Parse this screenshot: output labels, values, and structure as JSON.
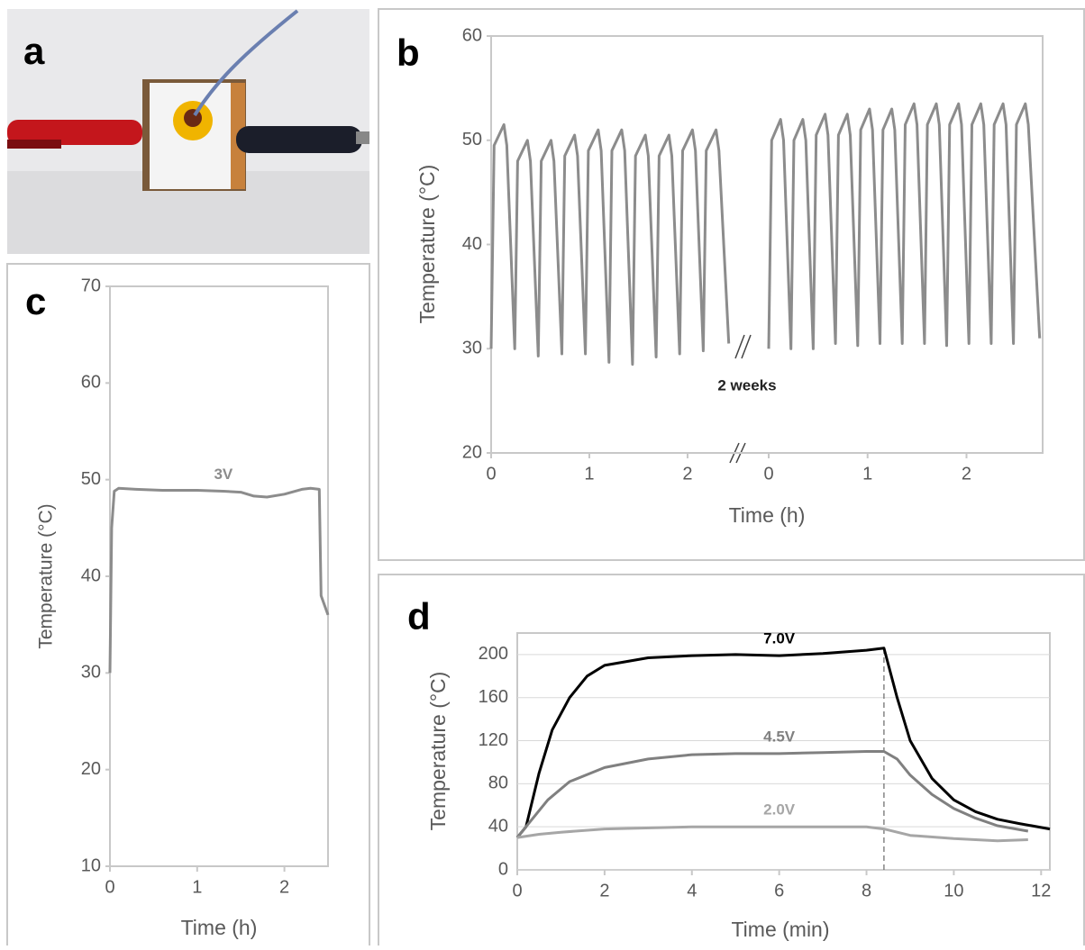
{
  "photo": {
    "label": "a"
  },
  "chart_data": [
    {
      "type": "line",
      "label": "b",
      "ylabel": "Temperature (°C)",
      "xlabel": "Time (h)",
      "annotation": "2 weeks",
      "ylim": [
        20,
        60
      ],
      "yticks": [
        20,
        30,
        40,
        50,
        60
      ],
      "segments": [
        {
          "xlim": [
            0,
            2.45
          ],
          "xticks": [
            0,
            1,
            2
          ],
          "series": [
            {
              "color": "#8c8c8c",
              "x": [
                0,
                0.03,
                0.13,
                0.16,
                0.24,
                0.27,
                0.37,
                0.4,
                0.48,
                0.51,
                0.61,
                0.64,
                0.72,
                0.75,
                0.85,
                0.88,
                0.96,
                0.99,
                1.09,
                1.12,
                1.2,
                1.23,
                1.33,
                1.36,
                1.44,
                1.47,
                1.57,
                1.6,
                1.68,
                1.71,
                1.81,
                1.84,
                1.92,
                1.95,
                2.05,
                2.08,
                2.16,
                2.19,
                2.29,
                2.32,
                2.42
              ],
              "values": [
                30,
                49.5,
                51.5,
                49.5,
                30,
                48,
                50,
                48,
                29.3,
                48,
                50,
                48,
                29.5,
                48.5,
                50.5,
                48.5,
                29.5,
                49,
                51,
                49,
                28.7,
                49,
                51,
                49,
                28.5,
                48.5,
                50.5,
                48.5,
                29.2,
                48.5,
                50.5,
                48.5,
                29.5,
                49,
                51,
                49,
                29.8,
                49,
                51,
                49,
                30.5
              ]
            }
          ]
        },
        {
          "xlim": [
            0,
            2.77
          ],
          "xticks": [
            0,
            1,
            2
          ],
          "series": [
            {
              "color": "#8c8c8c",
              "x": [
                0,
                0.03,
                0.12,
                0.15,
                0.225,
                0.255,
                0.345,
                0.375,
                0.45,
                0.48,
                0.57,
                0.6,
                0.675,
                0.705,
                0.795,
                0.825,
                0.9,
                0.93,
                1.02,
                1.05,
                1.125,
                1.155,
                1.245,
                1.275,
                1.35,
                1.38,
                1.47,
                1.5,
                1.575,
                1.605,
                1.695,
                1.725,
                1.8,
                1.83,
                1.92,
                1.95,
                2.025,
                2.055,
                2.145,
                2.175,
                2.25,
                2.28,
                2.37,
                2.4,
                2.475,
                2.505,
                2.595,
                2.625,
                2.74
              ],
              "values": [
                30,
                50,
                52,
                50,
                30,
                50,
                52,
                50,
                30,
                50.5,
                52.5,
                50.5,
                30.5,
                50.5,
                52.5,
                50.5,
                30.3,
                51,
                53,
                51,
                30.5,
                51,
                53,
                51,
                30.5,
                51.5,
                53.5,
                51.5,
                30.5,
                51.5,
                53.5,
                51.5,
                30.3,
                51.5,
                53.5,
                51.5,
                30.5,
                51.5,
                53.5,
                51.5,
                30.5,
                51.5,
                53.5,
                51.5,
                30.5,
                51.5,
                53.5,
                51.5,
                31
              ]
            }
          ]
        }
      ]
    },
    {
      "type": "line",
      "label": "c",
      "ylabel": "Temperature (°C)",
      "xlabel": "Time (h)",
      "xlim": [
        0,
        2.5
      ],
      "xticks": [
        0,
        1,
        2
      ],
      "ylim": [
        10,
        70
      ],
      "yticks": [
        10,
        20,
        30,
        40,
        50,
        60,
        70
      ],
      "series": [
        {
          "name": "3V",
          "color": "#8c8c8c",
          "x": [
            0,
            0.02,
            0.05,
            0.1,
            0.3,
            0.6,
            1,
            1.3,
            1.5,
            1.65,
            1.8,
            2,
            2.2,
            2.3,
            2.4,
            2.42,
            2.5
          ],
          "values": [
            30,
            45,
            48.8,
            49.1,
            49,
            48.9,
            48.9,
            48.8,
            48.7,
            48.3,
            48.2,
            48.5,
            49,
            49.1,
            49,
            38,
            36
          ]
        }
      ]
    },
    {
      "type": "line",
      "label": "d",
      "ylabel": "Temperature (°C)",
      "xlabel": "Time (min)",
      "grid": true,
      "vline": 8.4,
      "xlim": [
        0,
        12.2
      ],
      "xticks": [
        0,
        2,
        4,
        6,
        8,
        10,
        12
      ],
      "ylim": [
        0,
        220
      ],
      "yticks": [
        0,
        40,
        80,
        120,
        160,
        200
      ],
      "series": [
        {
          "name": "7.0V",
          "color": "#000000",
          "x": [
            0,
            0.2,
            0.5,
            0.8,
            1.2,
            1.6,
            2,
            3,
            4,
            5,
            6,
            7,
            8,
            8.4,
            8.7,
            9,
            9.5,
            10,
            10.5,
            11,
            11.5,
            12.2
          ],
          "values": [
            30,
            40,
            90,
            130,
            160,
            180,
            190,
            197,
            199,
            200,
            199,
            201,
            204,
            206,
            160,
            120,
            85,
            65,
            54,
            47,
            43,
            38
          ]
        },
        {
          "name": "4.5V",
          "color": "#808080",
          "x": [
            0,
            0.3,
            0.7,
            1.2,
            2,
            3,
            4,
            5,
            6,
            7,
            8,
            8.4,
            8.7,
            9,
            9.5,
            10,
            10.5,
            11,
            11.7
          ],
          "values": [
            30,
            45,
            65,
            82,
            95,
            103,
            107,
            108,
            108,
            109,
            110,
            110,
            103,
            88,
            70,
            57,
            48,
            41,
            36
          ]
        },
        {
          "name": "2.0V",
          "color": "#a6a6a6",
          "x": [
            0,
            0.5,
            1,
            2,
            4,
            6,
            8,
            8.4,
            9,
            10,
            11,
            11.7
          ],
          "values": [
            30,
            33,
            35,
            38,
            40,
            40,
            40,
            38,
            32,
            29,
            27,
            28
          ]
        }
      ]
    }
  ]
}
